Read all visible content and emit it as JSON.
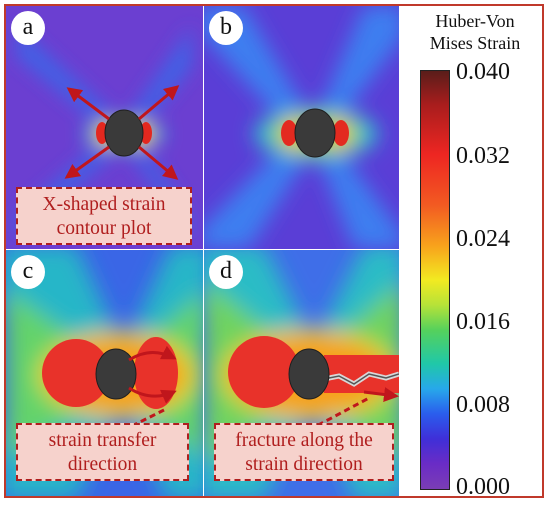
{
  "panels": [
    {
      "label": "a",
      "callout": [
        "X-shaped strain",
        "contour plot"
      ]
    },
    {
      "label": "b",
      "callout": []
    },
    {
      "label": "c",
      "callout": [
        "strain transfer",
        "direction"
      ]
    },
    {
      "label": "d",
      "callout": [
        "fracture along the",
        "strain direction"
      ]
    }
  ],
  "colorbar": {
    "title_line1": "Huber-Von",
    "title_line2": "Mises Strain",
    "ticks": [
      "0.040",
      "0.032",
      "0.024",
      "0.016",
      "0.008",
      "0.000"
    ],
    "min": 0.0,
    "max": 0.04
  },
  "colors": {
    "frame": "#c0392b",
    "arrow": "#c0161c",
    "callout_border": "#b01e1e",
    "callout_fill": "#f6d2cc",
    "hole": "#3a3a3a"
  }
}
